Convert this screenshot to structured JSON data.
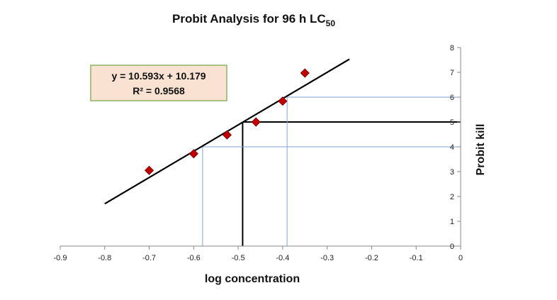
{
  "chart_data": {
    "type": "scatter",
    "title": "Probit Analysis for 96 h LC",
    "title_subscript": "50",
    "xlabel": "log concentration",
    "ylabel": "Probit kill",
    "xlim": [
      -0.9,
      0
    ],
    "ylim": [
      0,
      8
    ],
    "x_ticks": [
      "-0.9",
      "-0.8",
      "-0.7",
      "-0.6",
      "-0.5",
      "-0.4",
      "-0.3",
      "-0.2",
      "-0.1",
      "0"
    ],
    "y_ticks": [
      "0",
      "1",
      "2",
      "3",
      "4",
      "5",
      "6",
      "7",
      "8"
    ],
    "y_axis_position": "right",
    "grid": false,
    "points": [
      {
        "x": -0.7,
        "y": 3.05
      },
      {
        "x": -0.6,
        "y": 3.72
      },
      {
        "x": -0.525,
        "y": 4.48
      },
      {
        "x": -0.46,
        "y": 5.0
      },
      {
        "x": -0.4,
        "y": 5.84
      },
      {
        "x": -0.35,
        "y": 6.97
      }
    ],
    "marker_color": "#C00000",
    "trendline": {
      "x_range": [
        -0.8,
        -0.25
      ],
      "slope": 10.593,
      "intercept": 10.179,
      "equation": "y = 10.593x + 10.179",
      "r_squared": "R² = 0.9568",
      "color": "#000000"
    },
    "guide_lines": [
      {
        "x": -0.49,
        "y": 5,
        "color": "#000000"
      },
      {
        "x": -0.58,
        "y": 4,
        "color": "#7EA6D8"
      },
      {
        "x": -0.39,
        "y": 6,
        "color": "#7EA6D8"
      }
    ],
    "equation_box": {
      "fill": "#F9E2D2",
      "border": "#8DB360"
    }
  }
}
